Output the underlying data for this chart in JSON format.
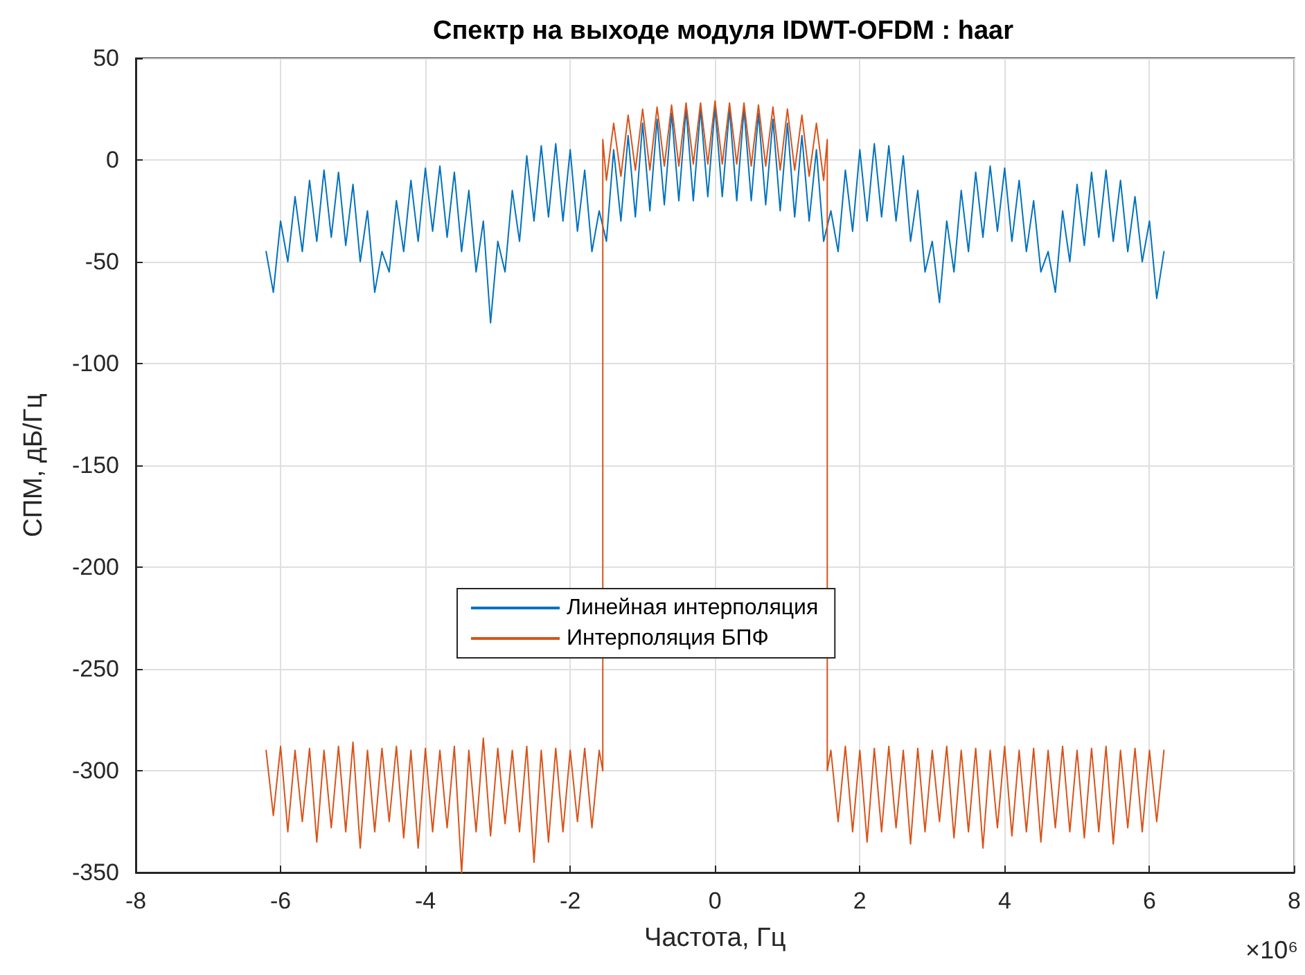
{
  "chart_data": {
    "type": "line",
    "title": "Спектр на выходе модуля IDWT-OFDM : haar",
    "xlabel": "Частота, Гц",
    "ylabel": "СПМ, дБ/Гц",
    "annotations": [
      "×10⁶"
    ],
    "xlim": [
      -8,
      8
    ],
    "xticks": [
      -8,
      -6,
      -4,
      -2,
      0,
      2,
      4,
      6,
      8
    ],
    "ylim": [
      -350,
      50
    ],
    "yticks": [
      -350,
      -300,
      -250,
      -200,
      -150,
      -100,
      -50,
      0,
      50
    ],
    "grid": true,
    "legend": "center",
    "line_style": "solid",
    "marker": "none",
    "series": [
      {
        "name": "Линейная интерполяция",
        "color": "#0072bd",
        "x": [
          -6.2,
          -6.1,
          -6.0,
          -5.9,
          -5.8,
          -5.7,
          -5.6,
          -5.5,
          -5.4,
          -5.3,
          -5.2,
          -5.1,
          -5.0,
          -4.9,
          -4.8,
          -4.7,
          -4.6,
          -4.5,
          -4.4,
          -4.3,
          -4.2,
          -4.1,
          -4.0,
          -3.9,
          -3.8,
          -3.7,
          -3.6,
          -3.5,
          -3.4,
          -3.3,
          -3.2,
          -3.1,
          -3.0,
          -2.9,
          -2.8,
          -2.7,
          -2.6,
          -2.5,
          -2.4,
          -2.3,
          -2.2,
          -2.1,
          -2.0,
          -1.9,
          -1.8,
          -1.7,
          -1.6,
          -1.5,
          -1.4,
          -1.3,
          -1.2,
          -1.1,
          -1.0,
          -0.9,
          -0.8,
          -0.7,
          -0.6,
          -0.5,
          -0.4,
          -0.3,
          -0.2,
          -0.1,
          0.0,
          0.1,
          0.2,
          0.3,
          0.4,
          0.5,
          0.6,
          0.7,
          0.8,
          0.9,
          1.0,
          1.1,
          1.2,
          1.3,
          1.4,
          1.5,
          1.6,
          1.7,
          1.8,
          1.9,
          2.0,
          2.1,
          2.2,
          2.3,
          2.4,
          2.5,
          2.6,
          2.7,
          2.8,
          2.9,
          3.0,
          3.1,
          3.2,
          3.3,
          3.4,
          3.5,
          3.6,
          3.7,
          3.8,
          3.9,
          4.0,
          4.1,
          4.2,
          4.3,
          4.4,
          4.5,
          4.6,
          4.7,
          4.8,
          4.9,
          5.0,
          5.1,
          5.2,
          5.3,
          5.4,
          5.5,
          5.6,
          5.7,
          5.8,
          5.9,
          6.0,
          6.1,
          6.2
        ],
        "values": [
          -45,
          -65,
          -30,
          -50,
          -18,
          -45,
          -10,
          -40,
          -5,
          -38,
          -6,
          -42,
          -12,
          -50,
          -25,
          -65,
          -45,
          -55,
          -20,
          -45,
          -10,
          -40,
          -4,
          -35,
          -3,
          -38,
          -6,
          -45,
          -15,
          -55,
          -30,
          -80,
          -40,
          -55,
          -15,
          -40,
          2,
          -30,
          7,
          -28,
          8,
          -30,
          5,
          -35,
          -5,
          -45,
          -25,
          -40,
          5,
          -30,
          12,
          -28,
          18,
          -25,
          20,
          -22,
          23,
          -20,
          25,
          -20,
          25,
          -18,
          26,
          -18,
          25,
          -20,
          25,
          -20,
          23,
          -22,
          20,
          -25,
          18,
          -28,
          12,
          -30,
          5,
          -40,
          -25,
          -45,
          -5,
          -35,
          5,
          -30,
          8,
          -28,
          7,
          -30,
          2,
          -40,
          -15,
          -55,
          -40,
          -70,
          -30,
          -55,
          -15,
          -45,
          -6,
          -38,
          -3,
          -35,
          -4,
          -40,
          -10,
          -45,
          -20,
          -55,
          -45,
          -65,
          -25,
          -50,
          -12,
          -42,
          -6,
          -38,
          -5,
          -40,
          -10,
          -45,
          -18,
          -50,
          -30,
          -68,
          -45
        ]
      },
      {
        "name": "Интерполяция БПФ",
        "color": "#d95319",
        "x": [
          -6.2,
          -6.1,
          -6.0,
          -5.9,
          -5.8,
          -5.7,
          -5.6,
          -5.5,
          -5.4,
          -5.3,
          -5.2,
          -5.1,
          -5.0,
          -4.9,
          -4.8,
          -4.7,
          -4.6,
          -4.5,
          -4.4,
          -4.3,
          -4.2,
          -4.1,
          -4.0,
          -3.9,
          -3.8,
          -3.7,
          -3.6,
          -3.5,
          -3.4,
          -3.3,
          -3.2,
          -3.1,
          -3.0,
          -2.9,
          -2.8,
          -2.7,
          -2.6,
          -2.5,
          -2.4,
          -2.3,
          -2.2,
          -2.1,
          -2.0,
          -1.9,
          -1.8,
          -1.7,
          -1.6,
          -1.55,
          -1.55,
          -1.5,
          -1.4,
          -1.3,
          -1.2,
          -1.1,
          -1.0,
          -0.9,
          -0.8,
          -0.7,
          -0.6,
          -0.5,
          -0.4,
          -0.3,
          -0.2,
          -0.1,
          0.0,
          0.1,
          0.2,
          0.3,
          0.4,
          0.5,
          0.6,
          0.7,
          0.8,
          0.9,
          1.0,
          1.1,
          1.2,
          1.3,
          1.4,
          1.5,
          1.55,
          1.55,
          1.6,
          1.7,
          1.8,
          1.9,
          2.0,
          2.1,
          2.2,
          2.3,
          2.4,
          2.5,
          2.6,
          2.7,
          2.8,
          2.9,
          3.0,
          3.1,
          3.2,
          3.3,
          3.4,
          3.5,
          3.6,
          3.7,
          3.8,
          3.9,
          4.0,
          4.1,
          4.2,
          4.3,
          4.4,
          4.5,
          4.6,
          4.7,
          4.8,
          4.9,
          5.0,
          5.1,
          5.2,
          5.3,
          5.4,
          5.5,
          5.6,
          5.7,
          5.8,
          5.9,
          6.0,
          6.1,
          6.2
        ],
        "values": [
          -290,
          -322,
          -288,
          -330,
          -290,
          -325,
          -289,
          -335,
          -290,
          -328,
          -288,
          -330,
          -286,
          -338,
          -290,
          -330,
          -289,
          -325,
          -288,
          -333,
          -290,
          -338,
          -289,
          -330,
          -290,
          -328,
          -288,
          -350,
          -290,
          -330,
          -284,
          -332,
          -289,
          -326,
          -290,
          -330,
          -288,
          -345,
          -290,
          -335,
          -289,
          -330,
          -290,
          -325,
          -289,
          -328,
          -290,
          -300,
          10,
          -10,
          18,
          -8,
          22,
          -5,
          25,
          -5,
          26,
          -3,
          27,
          -3,
          28,
          -2,
          28,
          -2,
          29,
          -2,
          28,
          -2,
          28,
          -3,
          27,
          -3,
          26,
          -5,
          25,
          -5,
          22,
          -8,
          18,
          -10,
          10,
          -300,
          -290,
          -325,
          -288,
          -330,
          -290,
          -335,
          -289,
          -330,
          -288,
          -328,
          -290,
          -336,
          -289,
          -330,
          -290,
          -325,
          -288,
          -333,
          -290,
          -330,
          -289,
          -338,
          -290,
          -328,
          -288,
          -332,
          -290,
          -330,
          -289,
          -335,
          -290,
          -328,
          -288,
          -330,
          -290,
          -333,
          -289,
          -330,
          -288,
          -336,
          -290,
          -328,
          -289,
          -330,
          -290,
          -325,
          -290
        ]
      }
    ]
  }
}
